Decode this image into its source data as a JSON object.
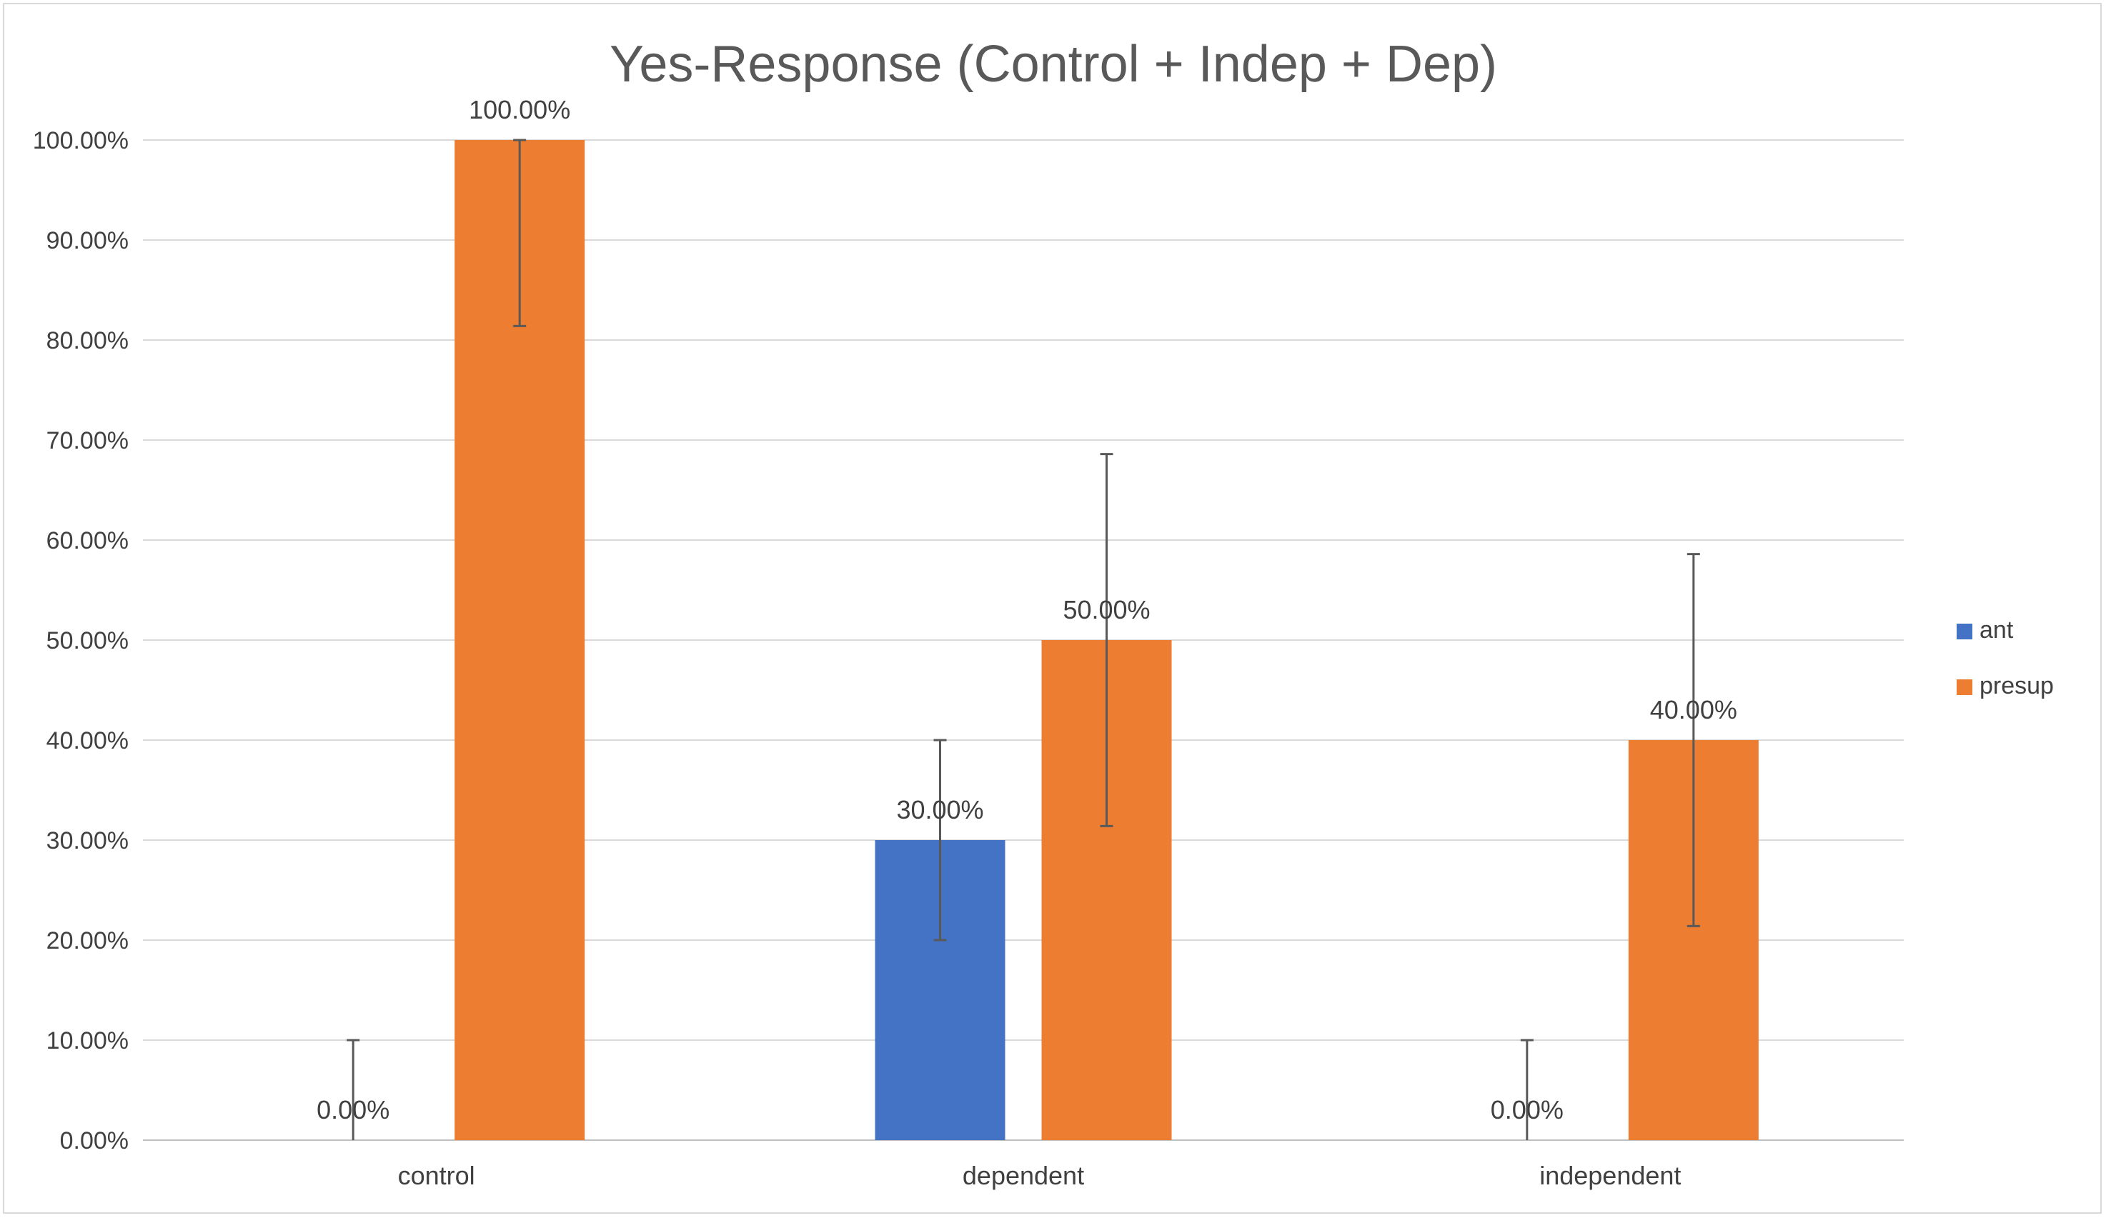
{
  "chart_data": {
    "type": "bar",
    "title": "Yes-Response (Control + Indep + Dep)",
    "xlabel": "",
    "ylabel": "",
    "categories": [
      "control",
      "dependent",
      "independent"
    ],
    "series": [
      {
        "name": "ant",
        "color": "#4472C4",
        "values": [
          0,
          30,
          0
        ],
        "labels": [
          "0.00%",
          "30.00%",
          "0.00%"
        ],
        "error_low": [
          0,
          20,
          0
        ],
        "error_high": [
          10,
          40,
          10
        ]
      },
      {
        "name": "presup",
        "color": "#ED7D31",
        "values": [
          100,
          50,
          40
        ],
        "labels": [
          "100.00%",
          "50.00%",
          "40.00%"
        ],
        "error_low": [
          81.4,
          31.4,
          21.4
        ],
        "error_high": [
          100,
          68.6,
          58.6
        ]
      }
    ],
    "ylim": [
      0,
      100
    ],
    "yticks": [
      0,
      10,
      20,
      30,
      40,
      50,
      60,
      70,
      80,
      90,
      100
    ],
    "ytick_labels": [
      "0.00%",
      "10.00%",
      "20.00%",
      "30.00%",
      "40.00%",
      "50.00%",
      "60.00%",
      "70.00%",
      "80.00%",
      "90.00%",
      "100.00%"
    ],
    "grid": true,
    "legend_position": "right",
    "colors": {
      "grid": "#d9d9d9",
      "axis": "#bfbfbf",
      "error_bar": "#595959"
    }
  }
}
